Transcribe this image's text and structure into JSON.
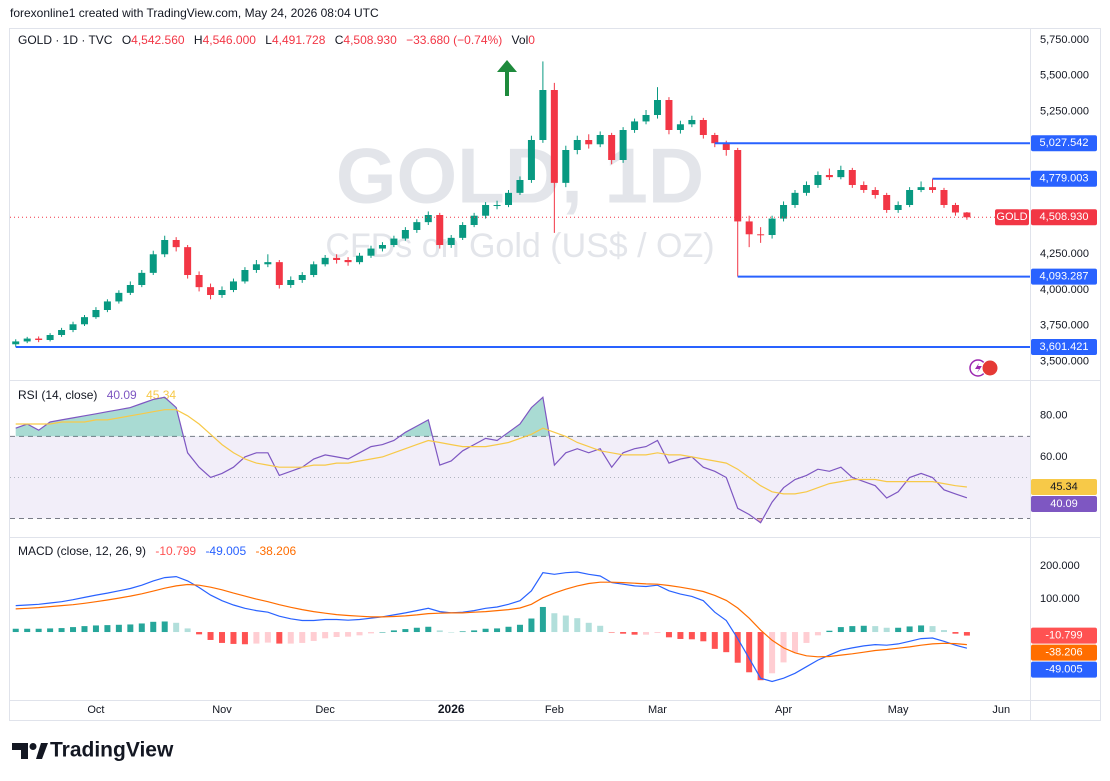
{
  "header": {
    "credit": "forexonline1 created with TradingView.com, May 24, 2026 08:04 UTC"
  },
  "footer": {
    "brand": "TradingView"
  },
  "chart_data": [
    {
      "type": "candlestick",
      "title": "GOLD · 1D · TVC",
      "legend": [
        {
          "key": "O",
          "value": "4,542.560"
        },
        {
          "key": "H",
          "value": "4,546.000"
        },
        {
          "key": "L",
          "value": "4,491.728"
        },
        {
          "key": "C",
          "value": "4,508.930"
        }
      ],
      "change": "−33.680 (−0.74%)",
      "volume_key": "Vol",
      "volume": 0,
      "watermark_title": "GOLD, 1D",
      "watermark_subtitle": "CFDs on Gold (US$ / OZ)",
      "symbol_tag": "GOLD",
      "categories": [
        null,
        null,
        null,
        null,
        null,
        null,
        null,
        "Oct",
        null,
        null,
        null,
        null,
        null,
        null,
        null,
        null,
        null,
        null,
        "Nov",
        null,
        null,
        null,
        null,
        null,
        null,
        null,
        null,
        "Dec",
        null,
        null,
        null,
        null,
        null,
        null,
        null,
        null,
        null,
        null,
        "2026",
        null,
        null,
        null,
        null,
        null,
        null,
        null,
        null,
        "Feb",
        null,
        null,
        null,
        null,
        null,
        null,
        null,
        null,
        "Mar",
        null,
        null,
        null,
        null,
        null,
        null,
        null,
        null,
        null,
        null,
        "Apr",
        null,
        null,
        null,
        null,
        null,
        null,
        null,
        null,
        null,
        "May",
        null,
        null,
        null,
        null,
        null,
        null,
        null,
        null,
        "Jun"
      ],
      "open": [
        3620,
        3640,
        3660,
        3650,
        3685,
        3720,
        3760,
        3810,
        3860,
        3920,
        3980,
        4035,
        4120,
        4250,
        4350,
        4300,
        4105,
        4020,
        3965,
        4000,
        4060,
        4140,
        4180,
        4195,
        4035,
        4070,
        4105,
        4180,
        4225,
        4210,
        4195,
        4240,
        4290,
        4315,
        4360,
        4420,
        4475,
        4525,
        4315,
        4365,
        4455,
        4520,
        4595,
        4595,
        4680,
        4770,
        5050,
        5400,
        4750,
        4980,
        5050,
        5020,
        5085,
        4910,
        5120,
        5180,
        5225,
        5330,
        5120,
        5160,
        5190,
        5085,
        5027.542,
        4980,
        4480,
        4390,
        4385,
        4500,
        4595,
        4680,
        4735,
        4805,
        4790,
        4840,
        4735,
        4700,
        4665,
        4560,
        4595,
        4700,
        4720,
        4700,
        4595,
        4542.56,
        null,
        null,
        null
      ],
      "high": [
        3655,
        3672,
        3675,
        3698,
        3735,
        3778,
        3825,
        3880,
        3935,
        3998,
        4060,
        4140,
        4275,
        4380,
        4370,
        4315,
        4130,
        4045,
        4025,
        4080,
        4160,
        4210,
        4250,
        4210,
        4095,
        4125,
        4200,
        4245,
        4250,
        4230,
        4260,
        4310,
        4335,
        4380,
        4440,
        4495,
        4550,
        4540,
        4385,
        4475,
        4540,
        4615,
        4625,
        4700,
        4795,
        5080,
        5600,
        5450,
        5010,
        5080,
        5090,
        5110,
        5100,
        5140,
        5200,
        5260,
        5420,
        5350,
        5185,
        5220,
        5205,
        5100,
        5045,
        4995,
        4520,
        4440,
        4520,
        4620,
        4700,
        4760,
        4830,
        4850,
        4870,
        4855,
        4760,
        4720,
        4680,
        4620,
        4720,
        4760,
        4779.003,
        4715,
        4610,
        4546,
        null,
        null,
        null
      ],
      "low": [
        3601.421,
        3628,
        3635,
        3640,
        3672,
        3705,
        3748,
        3798,
        3845,
        3905,
        3965,
        4020,
        4105,
        4230,
        4270,
        4080,
        3990,
        3935,
        3945,
        3985,
        4045,
        4120,
        4160,
        4010,
        4015,
        4050,
        4090,
        4165,
        4185,
        4170,
        4180,
        4225,
        4270,
        4300,
        4345,
        4400,
        4455,
        4290,
        4295,
        4350,
        4440,
        4500,
        4565,
        4580,
        4665,
        4750,
        5030,
        4400,
        4720,
        4950,
        4990,
        5000,
        4880,
        4890,
        5100,
        5160,
        5200,
        5090,
        5095,
        5140,
        5060,
        5000,
        4940,
        4093.287,
        4300,
        4330,
        4360,
        4480,
        4575,
        4660,
        4715,
        4770,
        4775,
        4715,
        4680,
        4640,
        4540,
        4540,
        4580,
        4685,
        4680,
        4575,
        4520,
        4491.728,
        null,
        null,
        null
      ],
      "close": [
        3640,
        3660,
        3650,
        3685,
        3720,
        3760,
        3810,
        3860,
        3920,
        3980,
        4035,
        4120,
        4250,
        4350,
        4300,
        4105,
        4020,
        3965,
        4000,
        4060,
        4140,
        4180,
        4195,
        4035,
        4070,
        4105,
        4180,
        4225,
        4210,
        4195,
        4240,
        4290,
        4315,
        4360,
        4420,
        4475,
        4525,
        4315,
        4365,
        4455,
        4520,
        4595,
        4595,
        4680,
        4770,
        5050,
        5400,
        4750,
        4980,
        5050,
        5020,
        5085,
        4910,
        5120,
        5180,
        5225,
        5330,
        5120,
        5160,
        5190,
        5085,
        5027.542,
        4980,
        4480,
        4390,
        4385,
        4500,
        4595,
        4680,
        4735,
        4805,
        4790,
        4840,
        4735,
        4700,
        4665,
        4560,
        4595,
        4700,
        4720,
        4700,
        4595,
        4542.56,
        4508.93,
        null,
        null,
        null
      ],
      "up_color": "#089981",
      "down_color": "#f23645",
      "level_color": "#2962ff",
      "levels": [
        {
          "value": 5027.542,
          "label": "5,027.542"
        },
        {
          "value": 4779.003,
          "label": "4,779.003"
        },
        {
          "value": 4093.287,
          "label": "4,093.287"
        },
        {
          "value": 3601.421,
          "label": "3,601.421"
        }
      ],
      "last_price": {
        "value": 4508.93,
        "label": "4,508.930"
      },
      "ylim": [
        3384,
        5820
      ],
      "yticks": [
        {
          "value": 5750,
          "label": "5,750.000"
        },
        {
          "value": 5500,
          "label": "5,500.000"
        },
        {
          "value": 5250,
          "label": "5,250.000"
        },
        {
          "value": 4250,
          "label": "4,250.000"
        },
        {
          "value": 4000,
          "label": "4,000.000"
        },
        {
          "value": 3750,
          "label": "3,750.000"
        },
        {
          "value": 3500,
          "label": "3,500.000"
        }
      ],
      "grid": false
    },
    {
      "type": "rsi",
      "title": "RSI (14, close)",
      "series": [
        {
          "color": "#7e57c2",
          "values": [
            74,
            76,
            73,
            77,
            78,
            79,
            80,
            81,
            82,
            83,
            84,
            86,
            88,
            89,
            84,
            62,
            55,
            50,
            52,
            55,
            60,
            62,
            62,
            51,
            53,
            55,
            59,
            61,
            60,
            59,
            62,
            65,
            66,
            68,
            72,
            75,
            78,
            56,
            58,
            63,
            66,
            69,
            68,
            72,
            76,
            84,
            89,
            56,
            62,
            64,
            62,
            64,
            55,
            62,
            64,
            65,
            68,
            57,
            59,
            60,
            55,
            53,
            50,
            35,
            32,
            28,
            38,
            45,
            49,
            51,
            54,
            53,
            55,
            50,
            48,
            46,
            40,
            43,
            50,
            52,
            50,
            44,
            42,
            40.09,
            null,
            null,
            null
          ]
        },
        {
          "color": "#f7c948",
          "values": [
            76,
            76,
            76,
            76,
            77,
            77,
            77,
            78,
            78,
            79,
            80,
            81,
            82,
            83,
            83,
            80,
            76,
            71,
            66,
            62,
            59,
            57,
            56,
            55,
            55,
            55,
            56,
            56,
            57,
            57,
            58,
            59,
            60,
            62,
            64,
            66,
            68,
            67,
            66,
            65,
            65,
            65,
            66,
            67,
            69,
            71,
            74,
            72,
            70,
            67,
            65,
            63,
            62,
            61,
            61,
            61,
            62,
            61,
            61,
            60,
            59,
            58,
            57,
            54,
            50,
            46,
            43,
            42,
            42,
            43,
            45,
            47,
            48,
            49,
            49,
            49,
            48,
            48,
            48,
            48,
            48,
            47,
            46,
            45.34,
            null,
            null,
            null
          ]
        }
      ],
      "bands": [
        70,
        30
      ],
      "midline": 50,
      "band_color": "#7e57c2",
      "overbought_color": "#089981",
      "oversold_color": "#f23645",
      "ylim": [
        22,
        95
      ],
      "yticks": [
        {
          "value": 80,
          "label": "80.00"
        },
        {
          "value": 60,
          "label": "60.00"
        }
      ]
    },
    {
      "type": "macd",
      "title": "MACD (close, 12, 26, 9)",
      "histogram": {
        "values": [
          10,
          10,
          10,
          11,
          12,
          15,
          18,
          20,
          21,
          22,
          23,
          26,
          31,
          32,
          28,
          11,
          -7,
          -24,
          -33,
          -36,
          -37,
          -35,
          -32,
          -35,
          -35,
          -33,
          -27,
          -19,
          -15,
          -14,
          -10,
          -4,
          0,
          5,
          9,
          13,
          16,
          5,
          0,
          2,
          5,
          10,
          11,
          16,
          22,
          41,
          76,
          57,
          50,
          42,
          28,
          19,
          -1,
          -5,
          -8,
          -8,
          -3,
          -16,
          -21,
          -22,
          -28,
          -51,
          -61,
          -93,
          -122,
          -146,
          -125,
          -92,
          -62,
          -33,
          -10,
          4,
          15,
          18,
          19,
          18,
          13,
          13,
          17,
          20,
          18,
          6,
          -5,
          -10.799,
          null,
          null,
          null
        ],
        "colors": {
          "rising_above": "#26a69a",
          "falling_above": "#b2dfdb",
          "rising_below": "#ffcdd2",
          "falling_below": "#ff5252"
        }
      },
      "series": [
        {
          "color": "#2962ff",
          "values": [
            80,
            82,
            84,
            88,
            92,
            98,
            105,
            112,
            118,
            125,
            132,
            142,
            155,
            165,
            168,
            155,
            135,
            112,
            95,
            82,
            72,
            65,
            60,
            48,
            40,
            35,
            35,
            38,
            38,
            36,
            38,
            42,
            46,
            52,
            58,
            65,
            72,
            62,
            58,
            60,
            65,
            72,
            76,
            84,
            95,
            125,
            180,
            175,
            180,
            182,
            175,
            170,
            150,
            145,
            140,
            138,
            142,
            125,
            115,
            108,
            95,
            60,
            35,
            -20,
            -80,
            -140,
            -150,
            -140,
            -125,
            -105,
            -85,
            -70,
            -55,
            -48,
            -42,
            -38,
            -40,
            -36,
            -28,
            -20,
            -18,
            -28,
            -40,
            -49.005,
            null,
            null,
            null
          ]
        },
        {
          "color": "#ff6d00",
          "values": [
            70,
            72,
            74,
            77,
            80,
            83,
            87,
            92,
            97,
            103,
            109,
            116,
            124,
            133,
            140,
            144,
            142,
            136,
            128,
            118,
            109,
            100,
            92,
            83,
            75,
            68,
            62,
            57,
            53,
            50,
            48,
            46,
            46,
            47,
            49,
            52,
            56,
            57,
            58,
            58,
            60,
            62,
            65,
            68,
            73,
            84,
            104,
            118,
            130,
            140,
            147,
            151,
            151,
            150,
            148,
            146,
            145,
            141,
            136,
            130,
            123,
            111,
            96,
            73,
            42,
            6,
            -25,
            -48,
            -63,
            -72,
            -75,
            -74,
            -70,
            -66,
            -61,
            -56,
            -53,
            -49,
            -45,
            -40,
            -36,
            -34,
            -35,
            -38.206,
            null,
            null,
            null
          ]
        }
      ],
      "ylim": [
        -206,
        279
      ],
      "yticks": [
        {
          "value": 200,
          "label": "200.000"
        },
        {
          "value": 100,
          "label": "100.000"
        }
      ]
    }
  ]
}
